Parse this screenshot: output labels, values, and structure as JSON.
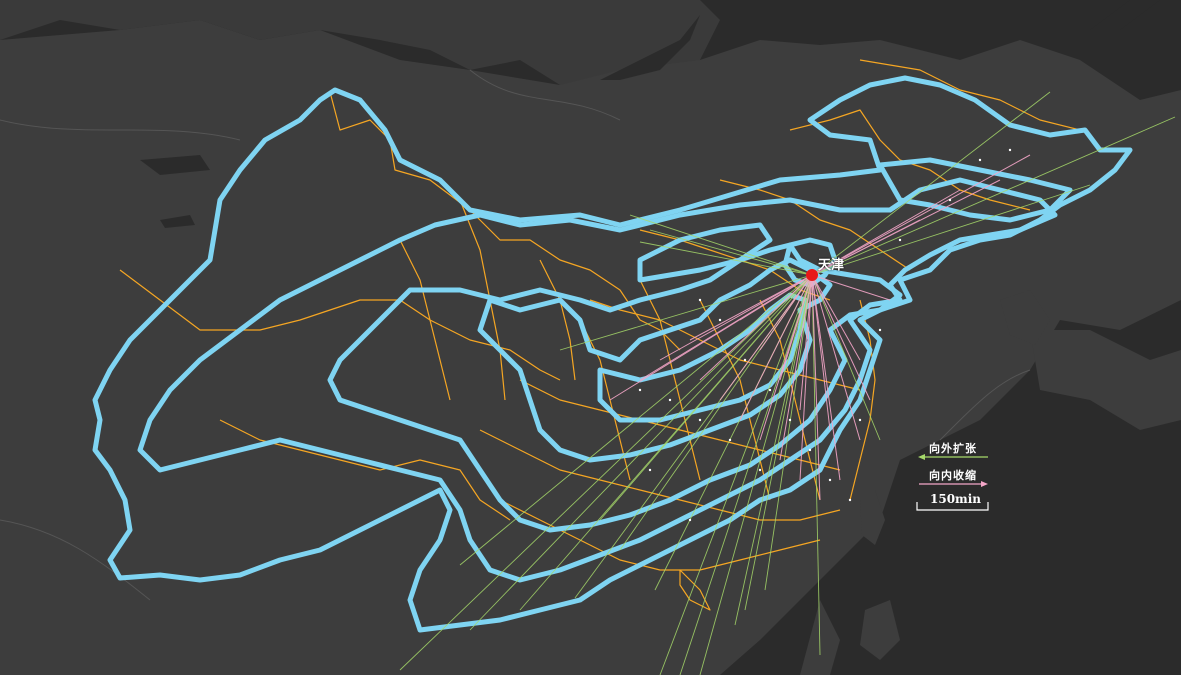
{
  "city": {
    "name": "天津",
    "marker_color": "#e81818"
  },
  "legend": {
    "outward_label": "向外扩张",
    "outward_color": "#a6d96a",
    "inward_label": "向内收缩",
    "inward_color": "#f4a6c8",
    "scale_label": "150min"
  },
  "colors": {
    "background": "#2b2b2b",
    "land": "#3a3a3a",
    "sea": "#2b2b2b",
    "contour": "#7fd4f2",
    "province_border": "#f5a623"
  }
}
